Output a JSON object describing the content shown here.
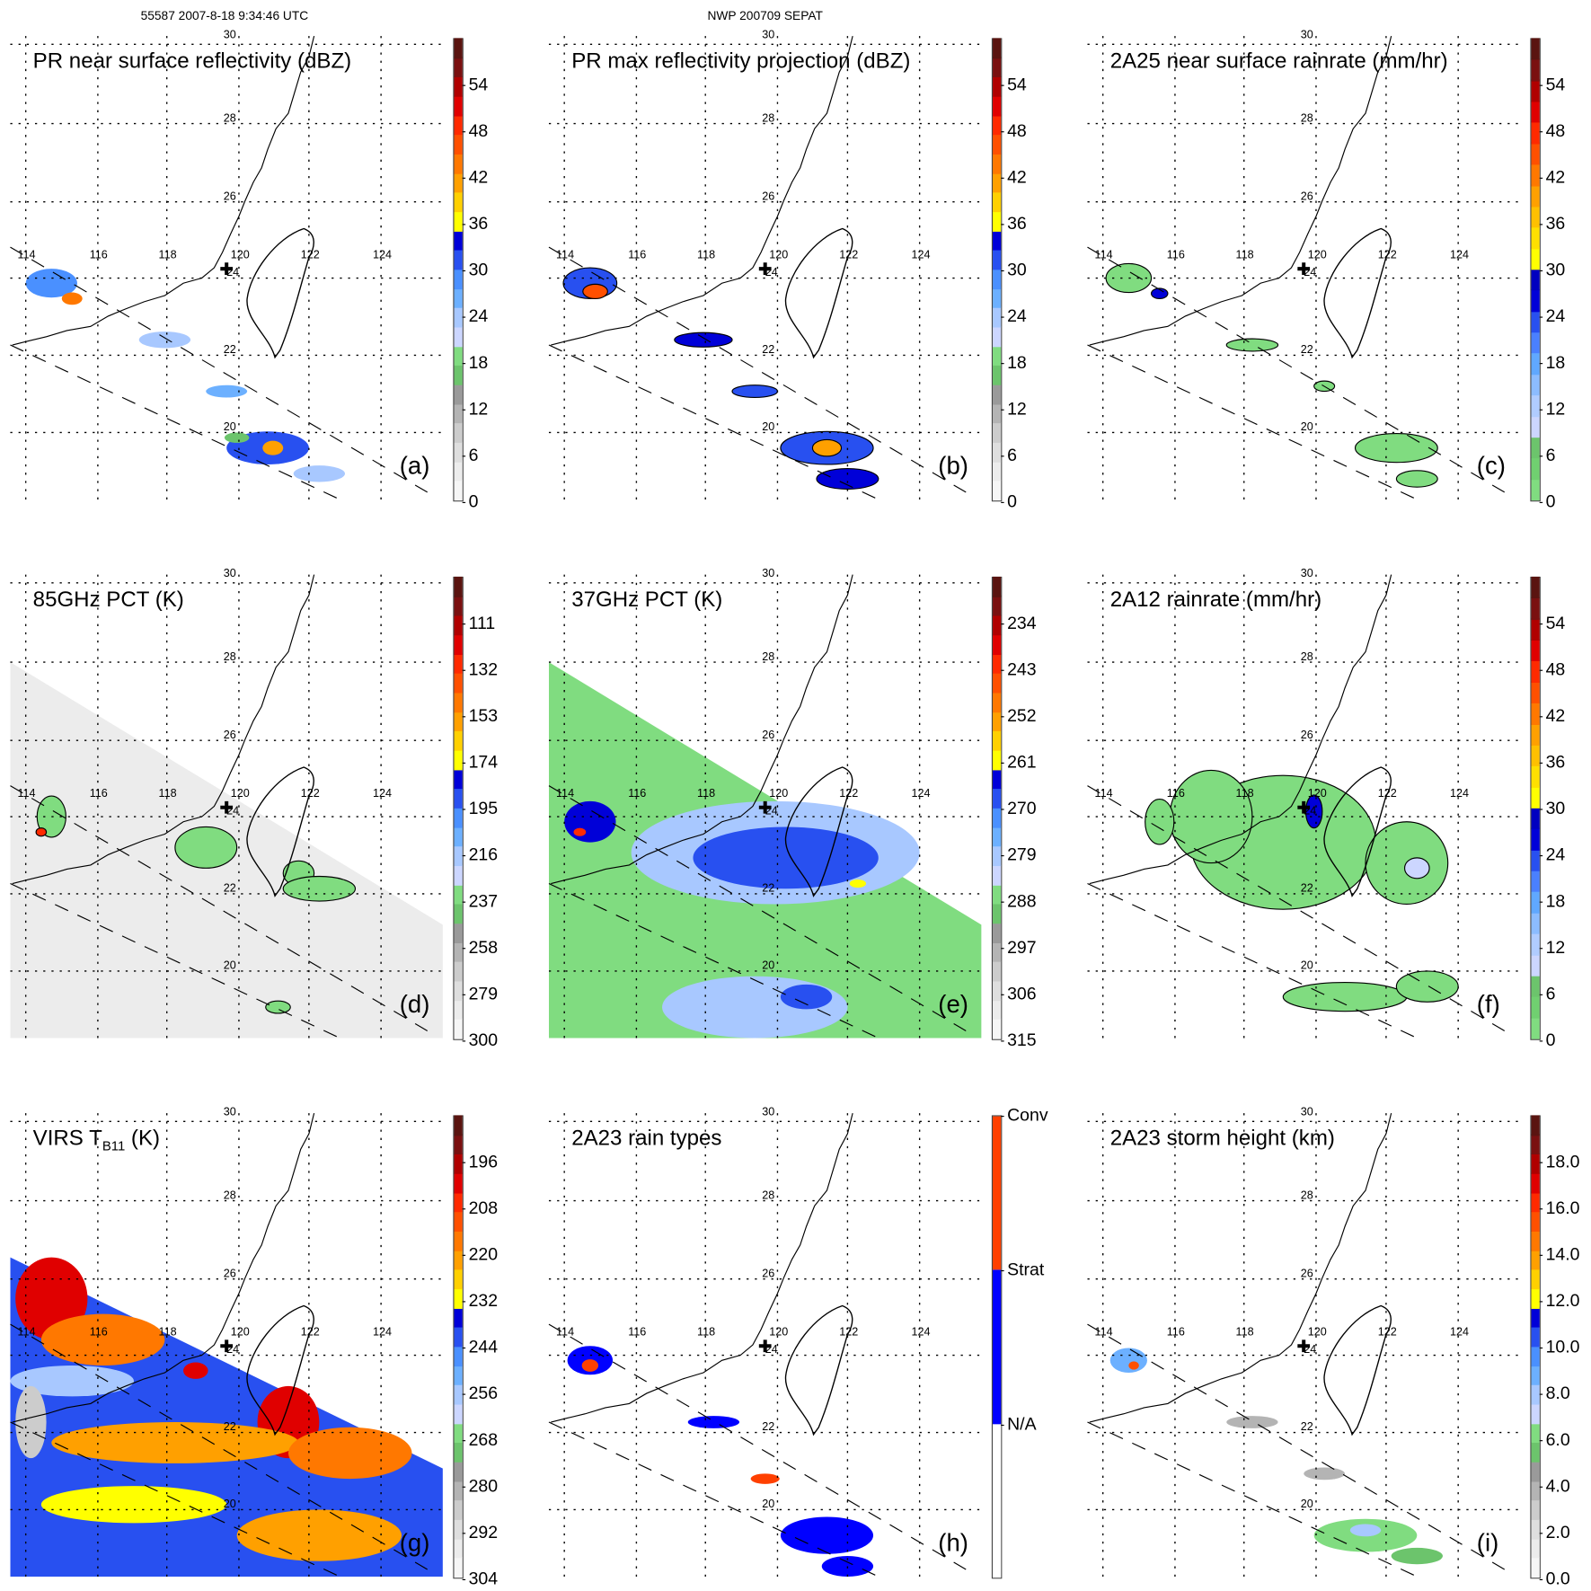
{
  "header": {
    "orbit_time": "55587 2007-8-18 9:34:46 UTC",
    "case_name": "NWP 200709 SEPAT"
  },
  "map_labels": {
    "lat": [
      "30",
      "28",
      "26",
      "24",
      "22",
      "20"
    ],
    "lon": [
      "114",
      "116",
      "118",
      "120",
      "122",
      "124"
    ]
  },
  "panels": [
    {
      "id": "a",
      "title": "PR near surface reflectivity (dBZ)",
      "letter": "(a)",
      "ticks": [
        "0",
        "6",
        "12",
        "18",
        "24",
        "30",
        "36",
        "42",
        "48",
        "54"
      ],
      "colors": [
        "#f6f6f6",
        "#ececec",
        "#dedede",
        "#cccccc",
        "#b4b4b4",
        "#9a9a9a",
        "#6cc46c",
        "#80dc80",
        "#ccd6ff",
        "#a8c8ff",
        "#6cb0ff",
        "#4a90ff",
        "#2850f0",
        "#0000d8",
        "#ffff00",
        "#ffd000",
        "#ffa000",
        "#ff7800",
        "#ff5000",
        "#ff2a00",
        "#e00000",
        "#b00000",
        "#7a1010",
        "#5a1410"
      ]
    },
    {
      "id": "b",
      "title": "PR max reflectivity projection (dBZ)",
      "letter": "(b)",
      "ticks": [
        "0",
        "6",
        "12",
        "18",
        "24",
        "30",
        "36",
        "42",
        "48",
        "54"
      ],
      "colors": [
        "#f6f6f6",
        "#ececec",
        "#dedede",
        "#cccccc",
        "#b4b4b4",
        "#9a9a9a",
        "#6cc46c",
        "#80dc80",
        "#ccd6ff",
        "#a8c8ff",
        "#6cb0ff",
        "#4a90ff",
        "#2850f0",
        "#0000d8",
        "#ffff00",
        "#ffd000",
        "#ffa000",
        "#ff7800",
        "#ff5000",
        "#ff2a00",
        "#e00000",
        "#b00000",
        "#7a1010",
        "#5a1410"
      ]
    },
    {
      "id": "c",
      "title": "2A25 near surface rainrate (mm/hr)",
      "letter": "(c)",
      "ticks": [
        "0",
        "6",
        "12",
        "18",
        "24",
        "30",
        "36",
        "42",
        "48",
        "54"
      ],
      "colors": [
        "#80dc80",
        "#70d070",
        "#6cc46c",
        "#ccd6ff",
        "#b0ccff",
        "#8cbcff",
        "#60a8ff",
        "#4a80ff",
        "#2850f0",
        "#0000d8",
        "#0000c0",
        "#ffff00",
        "#ffe000",
        "#ffc000",
        "#ffa000",
        "#ff7800",
        "#ff5000",
        "#ff2a00",
        "#e00000",
        "#b00000",
        "#7a1010",
        "#5a1410"
      ]
    },
    {
      "id": "d",
      "title": "85GHz PCT (K)",
      "letter": "(d)",
      "ticks": [
        "300",
        "279",
        "258",
        "237",
        "216",
        "195",
        "174",
        "153",
        "132",
        "111"
      ],
      "colors": [
        "#f6f6f6",
        "#ececec",
        "#dedede",
        "#cccccc",
        "#b4b4b4",
        "#9a9a9a",
        "#6cc46c",
        "#80dc80",
        "#ccd6ff",
        "#a8c8ff",
        "#6cb0ff",
        "#4a90ff",
        "#2850f0",
        "#0000d8",
        "#ffff00",
        "#ffd000",
        "#ffa000",
        "#ff7800",
        "#ff5000",
        "#ff2a00",
        "#e00000",
        "#b00000",
        "#7a1010",
        "#5a1410"
      ]
    },
    {
      "id": "e",
      "title": "37GHz PCT (K)",
      "letter": "(e)",
      "ticks": [
        "315",
        "306",
        "297",
        "288",
        "279",
        "270",
        "261",
        "252",
        "243",
        "234"
      ],
      "colors": [
        "#f6f6f6",
        "#ececec",
        "#dedede",
        "#cccccc",
        "#b4b4b4",
        "#9a9a9a",
        "#6cc46c",
        "#80dc80",
        "#ccd6ff",
        "#a8c8ff",
        "#6cb0ff",
        "#4a90ff",
        "#2850f0",
        "#0000d8",
        "#ffff00",
        "#ffd000",
        "#ffa000",
        "#ff7800",
        "#ff5000",
        "#ff2a00",
        "#e00000",
        "#b00000",
        "#7a1010",
        "#5a1410"
      ]
    },
    {
      "id": "f",
      "title": "2A12 rainrate (mm/hr)",
      "letter": "(f)",
      "ticks": [
        "0",
        "6",
        "12",
        "18",
        "24",
        "30",
        "36",
        "42",
        "48",
        "54"
      ],
      "colors": [
        "#80dc80",
        "#70d070",
        "#6cc46c",
        "#ccd6ff",
        "#b0ccff",
        "#8cbcff",
        "#60a8ff",
        "#4a80ff",
        "#2850f0",
        "#0000d8",
        "#0000c0",
        "#ffff00",
        "#ffe000",
        "#ffc000",
        "#ffa000",
        "#ff7800",
        "#ff5000",
        "#ff2a00",
        "#e00000",
        "#b00000",
        "#7a1010",
        "#5a1410"
      ]
    },
    {
      "id": "g",
      "title": "VIRS T",
      "title_sub": "B11",
      "title_suffix": " (K)",
      "letter": "(g)",
      "ticks": [
        "304",
        "292",
        "280",
        "268",
        "256",
        "244",
        "232",
        "220",
        "208",
        "196"
      ],
      "colors": [
        "#f6f6f6",
        "#ececec",
        "#dedede",
        "#cccccc",
        "#b4b4b4",
        "#9a9a9a",
        "#6cc46c",
        "#80dc80",
        "#ccd6ff",
        "#a8c8ff",
        "#6cb0ff",
        "#4a90ff",
        "#2850f0",
        "#0000d8",
        "#ffff00",
        "#ffd000",
        "#ffa000",
        "#ff7800",
        "#ff5000",
        "#ff2a00",
        "#e00000",
        "#b00000",
        "#7a1010",
        "#5a1410"
      ]
    },
    {
      "id": "h",
      "title": "2A23 rain types",
      "letter": "(h)",
      "ticks": [
        "N/A",
        "Strat",
        "Conv"
      ],
      "categorical": true,
      "colors": [
        "#ffffff",
        "#0000ff",
        "#ff4000"
      ]
    },
    {
      "id": "i",
      "title": "2A23 storm height (km)",
      "letter": "(i)",
      "ticks": [
        "0.0",
        "2.0",
        "4.0",
        "6.0",
        "8.0",
        "10.0",
        "12.0",
        "14.0",
        "16.0",
        "18.0"
      ],
      "colors": [
        "#f6f6f6",
        "#ececec",
        "#dedede",
        "#cccccc",
        "#b4b4b4",
        "#9a9a9a",
        "#6cc46c",
        "#80dc80",
        "#ccd6ff",
        "#a8c8ff",
        "#6cb0ff",
        "#4a90ff",
        "#2850f0",
        "#0000d8",
        "#ffff00",
        "#ffd000",
        "#ffa000",
        "#ff7800",
        "#ff5000",
        "#ff2a00",
        "#e00000",
        "#b00000",
        "#7a1010",
        "#5a1410"
      ]
    }
  ]
}
